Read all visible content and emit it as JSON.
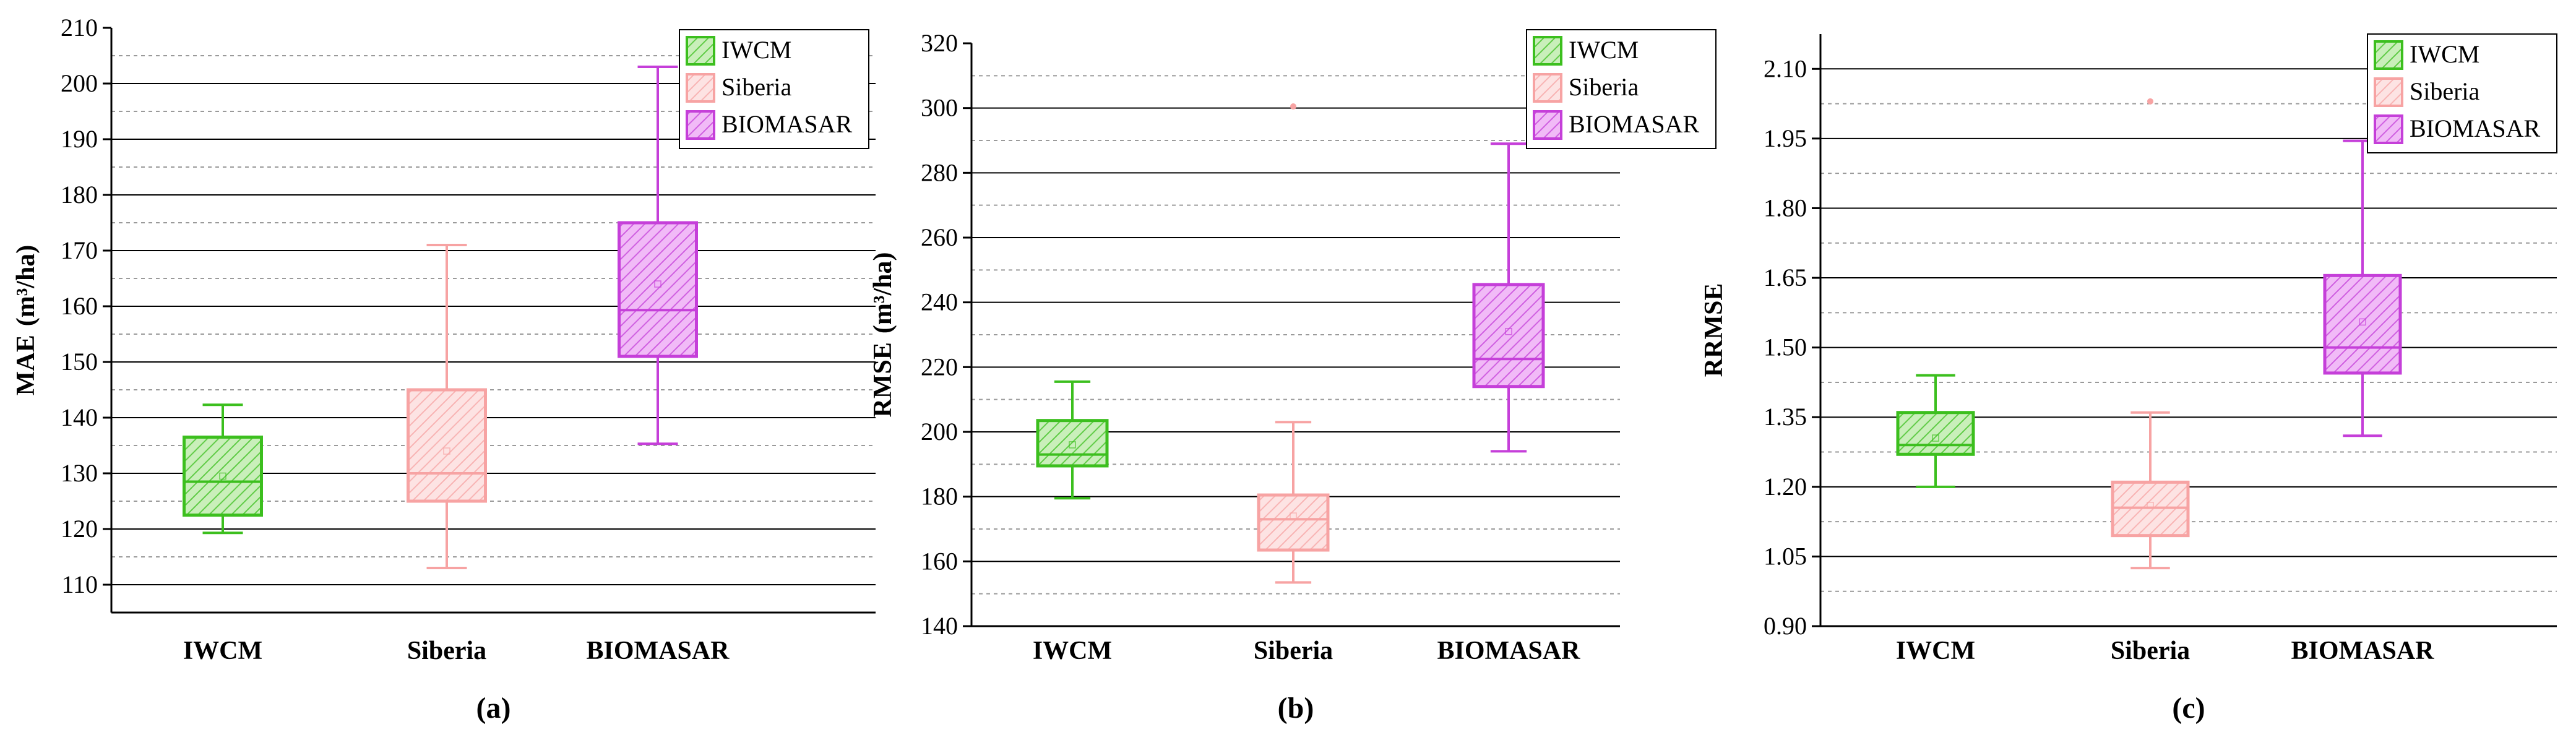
{
  "colors": {
    "IWCM": "#3cbf1e",
    "IWCM_fill": "#c9efba",
    "Siberia": "#f7a3a3",
    "Siberia_fill": "#fde3e3",
    "BIOMASAR": "#c53fd9",
    "BIOMASAR_fill": "#f1baf7"
  },
  "chart_data": [
    {
      "type": "box",
      "panel_label": "(a)",
      "ylabel_main": "MAE",
      "ylabel_unit": "(m³/ha)",
      "ylim": [
        105,
        210
      ],
      "yticks": [
        110,
        120,
        130,
        140,
        150,
        160,
        170,
        180,
        190,
        200,
        210
      ],
      "grid": "major solid, minor dashed",
      "legend_position": "top-right",
      "categories": [
        "IWCM",
        "Siberia",
        "BIOMASAR"
      ],
      "series": [
        {
          "name": "IWCM",
          "whisker_low": 119.3,
          "q1": 122.5,
          "median": 128.5,
          "q3": 136.5,
          "whisker_high": 142.3,
          "mean": 129.5,
          "outliers": []
        },
        {
          "name": "Siberia",
          "whisker_low": 113,
          "q1": 125,
          "median": 130,
          "q3": 145,
          "whisker_high": 171,
          "mean": 134,
          "outliers": []
        },
        {
          "name": "BIOMASAR",
          "whisker_low": 135.3,
          "q1": 151,
          "median": 159.3,
          "q3": 175,
          "whisker_high": 203,
          "mean": 164,
          "outliers": []
        }
      ]
    },
    {
      "type": "box",
      "panel_label": "(b)",
      "ylabel_main": "RMSE",
      "ylabel_unit": "(m³/ha)",
      "ylim": [
        140,
        320
      ],
      "yticks": [
        140,
        160,
        180,
        200,
        220,
        240,
        260,
        280,
        300,
        320
      ],
      "grid": "major solid, minor dashed",
      "legend_position": "top-right",
      "categories": [
        "IWCM",
        "Siberia",
        "BIOMASAR"
      ],
      "series": [
        {
          "name": "IWCM",
          "whisker_low": 179.5,
          "q1": 189.5,
          "median": 193,
          "q3": 203.5,
          "whisker_high": 215.5,
          "mean": 196,
          "outliers": []
        },
        {
          "name": "Siberia",
          "whisker_low": 153.5,
          "q1": 163.5,
          "median": 173,
          "q3": 180.5,
          "whisker_high": 203,
          "mean": 174,
          "outliers": [
            300.5
          ]
        },
        {
          "name": "BIOMASAR",
          "whisker_low": 194,
          "q1": 214,
          "median": 222.5,
          "q3": 245.5,
          "whisker_high": 289,
          "mean": 231,
          "outliers": []
        }
      ]
    },
    {
      "type": "box",
      "panel_label": "(c)",
      "ylabel_main": "RRMSE",
      "ylabel_unit": "",
      "ylim": [
        0.9,
        2.175
      ],
      "yticks": [
        0.9,
        1.05,
        1.2,
        1.35,
        1.5,
        1.65,
        1.8,
        1.95,
        2.1
      ],
      "ytick_labels": [
        "0.90",
        "1.05",
        "1.20",
        "1.35",
        "1.50",
        "1.65",
        "1.80",
        "1.95",
        "2.10"
      ],
      "grid": "major solid, minor dashed",
      "legend_position": "top-right",
      "categories": [
        "IWCM",
        "Siberia",
        "BIOMASAR"
      ],
      "series": [
        {
          "name": "IWCM",
          "whisker_low": 1.2,
          "q1": 1.27,
          "median": 1.29,
          "q3": 1.36,
          "whisker_high": 1.44,
          "mean": 1.305,
          "outliers": []
        },
        {
          "name": "Siberia",
          "whisker_low": 1.025,
          "q1": 1.095,
          "median": 1.155,
          "q3": 1.21,
          "whisker_high": 1.36,
          "mean": 1.16,
          "outliers": [
            2.03
          ]
        },
        {
          "name": "BIOMASAR",
          "whisker_low": 1.31,
          "q1": 1.445,
          "median": 1.5,
          "q3": 1.655,
          "whisker_high": 1.945,
          "mean": 1.555,
          "outliers": []
        }
      ]
    }
  ]
}
